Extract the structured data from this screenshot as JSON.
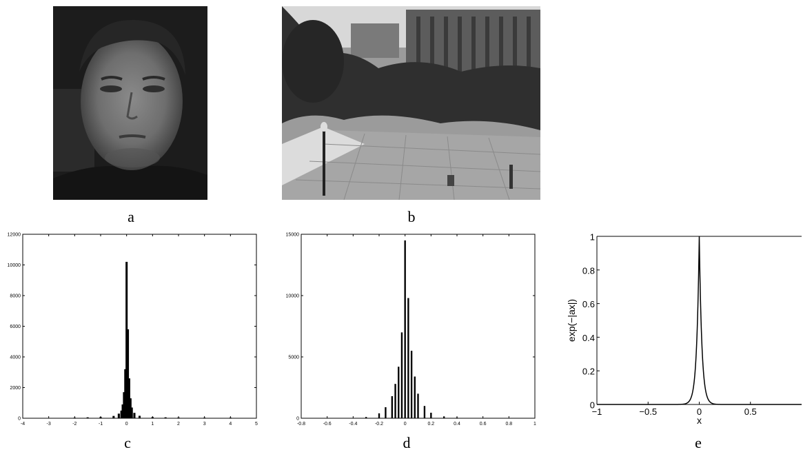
{
  "captions": {
    "a": "a",
    "b": "b",
    "c": "c",
    "d": "d",
    "e": "e"
  },
  "photos": {
    "a": {
      "subject": "grayscale face portrait"
    },
    "b": {
      "subject": "grayscale outdoor campus plaza scene"
    }
  },
  "chart_data": [
    {
      "id": "c",
      "type": "bar",
      "title": "",
      "xlabel": "",
      "ylabel": "",
      "xlim": [
        -4,
        5
      ],
      "ylim": [
        0,
        12000
      ],
      "xticks": [
        "-4",
        "-3",
        "-2",
        "-1",
        "0",
        "1",
        "2",
        "3",
        "4",
        "5"
      ],
      "yticks": [
        "0",
        "2000",
        "4000",
        "6000",
        "8000",
        "10000",
        "12000"
      ],
      "x": [
        -2.0,
        -1.5,
        -1.0,
        -0.5,
        -0.3,
        -0.2,
        -0.15,
        -0.1,
        -0.05,
        0.0,
        0.05,
        0.1,
        0.15,
        0.2,
        0.3,
        0.5,
        1.0,
        1.5,
        2.0,
        3.0,
        4.0
      ],
      "values": [
        40,
        60,
        80,
        150,
        300,
        500,
        900,
        1700,
        3200,
        10200,
        5800,
        2600,
        1300,
        700,
        350,
        160,
        80,
        60,
        50,
        40,
        40
      ]
    },
    {
      "id": "d",
      "type": "bar",
      "title": "",
      "xlabel": "",
      "ylabel": "",
      "xlim": [
        -0.8,
        1.0
      ],
      "ylim": [
        0,
        15000
      ],
      "xticks": [
        "-0.8",
        "-0.6",
        "-0.4",
        "-0.2",
        "0",
        "0.2",
        "0.4",
        "0.6",
        "0.8",
        "1"
      ],
      "yticks": [
        "0",
        "5000",
        "10000",
        "15000"
      ],
      "x": [
        -0.3,
        -0.2,
        -0.15,
        -0.1,
        -0.075,
        -0.05,
        -0.025,
        0.0,
        0.025,
        0.05,
        0.075,
        0.1,
        0.15,
        0.2,
        0.3,
        0.4
      ],
      "values": [
        100,
        400,
        900,
        1800,
        2800,
        4200,
        7000,
        14500,
        9800,
        5500,
        3400,
        2000,
        1000,
        450,
        150,
        60
      ]
    },
    {
      "id": "e",
      "type": "line",
      "title": "",
      "xlabel": "x",
      "ylabel": "exp(−|ax|)",
      "xlim": [
        -1,
        1
      ],
      "ylim": [
        0,
        1
      ],
      "xticks": [
        "−1",
        "−0.5",
        "0",
        "0.5"
      ],
      "yticks": [
        "0",
        "0.2",
        "0.4",
        "0.6",
        "0.8",
        "1"
      ],
      "a": 40
    }
  ]
}
